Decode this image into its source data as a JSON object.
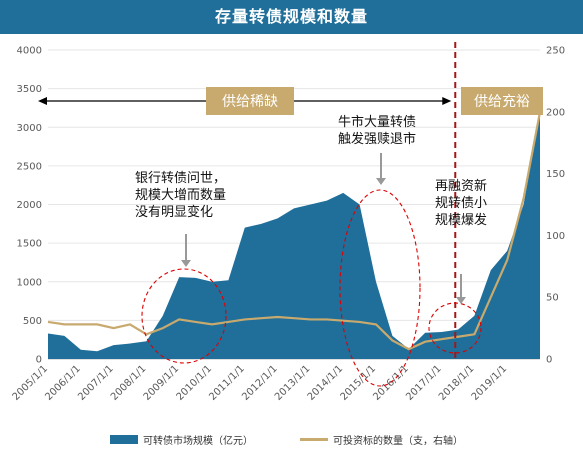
{
  "title": "存量转债规模和数量",
  "chart_data": {
    "type": "area+line",
    "x_dates": [
      "2005-01",
      "2005-07",
      "2006-01",
      "2006-07",
      "2007-01",
      "2007-07",
      "2008-01",
      "2008-07",
      "2009-01",
      "2009-07",
      "2010-01",
      "2010-07",
      "2011-01",
      "2011-07",
      "2012-01",
      "2012-07",
      "2013-01",
      "2013-07",
      "2014-01",
      "2014-07",
      "2015-01",
      "2015-07",
      "2016-01",
      "2016-07",
      "2017-01",
      "2017-07",
      "2018-01",
      "2018-07",
      "2019-01",
      "2019-07",
      "2020-01"
    ],
    "series": [
      {
        "name": "可转债市场规模（亿元）",
        "axis": "left",
        "kind": "area",
        "color": "#1f6f9a",
        "values": [
          330,
          300,
          120,
          100,
          180,
          200,
          230,
          560,
          1060,
          1050,
          1000,
          1020,
          1700,
          1750,
          1820,
          1950,
          2000,
          2050,
          2150,
          2000,
          1000,
          300,
          130,
          340,
          350,
          380,
          560,
          1150,
          1400,
          2000,
          3200
        ]
      },
      {
        "name": "可投资标的数量（支，右轴）",
        "axis": "right",
        "kind": "line",
        "color": "#c8a96e",
        "values": [
          30,
          28,
          28,
          28,
          25,
          28,
          20,
          25,
          32,
          30,
          28,
          30,
          32,
          33,
          34,
          33,
          32,
          32,
          31,
          30,
          28,
          15,
          8,
          14,
          16,
          18,
          20,
          50,
          80,
          130,
          200
        ]
      }
    ],
    "left_axis": {
      "min": 0,
      "max": 4000,
      "ticks": [
        0,
        500,
        1000,
        1500,
        2000,
        2500,
        3000,
        3500,
        4000
      ]
    },
    "right_axis": {
      "min": 0,
      "max": 250,
      "ticks": [
        0,
        50,
        100,
        150,
        200,
        250
      ]
    },
    "x_tick_labels": [
      "2005/1/1",
      "2006/1/1",
      "2007/1/1",
      "2008/1/1",
      "2009/1/1",
      "2010/1/1",
      "2011/1/1",
      "2012/1/1",
      "2013/1/1",
      "2014/1/1",
      "2015/1/1",
      "2016/1/1",
      "2017/1/1",
      "2018/1/1",
      "2019/1/1"
    ],
    "phases": [
      {
        "label": "供给稀缺"
      },
      {
        "label": "供给充裕"
      }
    ],
    "annotations": [
      {
        "lines": [
          "银行转债问世，",
          "规模大增而数量",
          "没有明显变化"
        ]
      },
      {
        "lines": [
          "牛市大量转债",
          "触发强赎退市"
        ]
      },
      {
        "lines": [
          "再融资新",
          "规转债小",
          "规模爆发"
        ]
      }
    ],
    "divider_date": "2017-06",
    "legend_position": "bottom"
  }
}
